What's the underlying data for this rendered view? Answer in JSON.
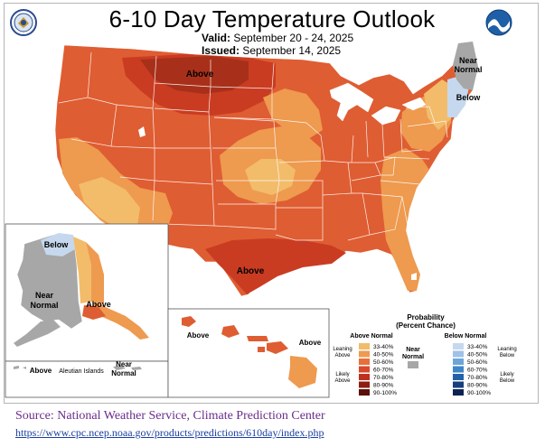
{
  "header": {
    "title": "6-10 Day Temperature Outlook",
    "valid_label": "Valid:",
    "valid_value": "September 20 - 24, 2025",
    "issued_label": "Issued:",
    "issued_value": "September 14, 2025"
  },
  "logos": {
    "left": "department-of-commerce-seal",
    "right": "noaa-logo"
  },
  "map_labels": {
    "conus_above_north": "Above",
    "conus_above_south": "Above",
    "near_normal_ne_1": "Near",
    "near_normal_ne_2": "Normal",
    "below_ne": "Below",
    "alaska_below": "Below",
    "alaska_near_1": "Near",
    "alaska_near_2": "Normal",
    "alaska_above": "Above",
    "aleutian_above": "Above",
    "aleutian_islands": "Aleutian Islands",
    "aleutian_near_1": "Near",
    "aleutian_near_2": "Normal",
    "hawaii_above_1": "Above",
    "hawaii_above_2": "Above"
  },
  "legend": {
    "title_1": "Probability",
    "title_2": "(Percent Chance)",
    "above_header": "Above Normal",
    "below_header": "Below Normal",
    "near_1": "Near",
    "near_2": "Normal",
    "leaning_above_1": "Leaning",
    "leaning_above_2": "Above",
    "likely_above_1": "Likely",
    "likely_above_2": "Above",
    "leaning_below_1": "Leaning",
    "leaning_below_2": "Below",
    "likely_below_1": "Likely",
    "likely_below_2": "Below",
    "above_bins": [
      {
        "label": "33-40%",
        "color": "#f2bc6b"
      },
      {
        "label": "40-50%",
        "color": "#ee9a4f"
      },
      {
        "label": "50-60%",
        "color": "#e7703a"
      },
      {
        "label": "60-70%",
        "color": "#d9482b"
      },
      {
        "label": "70-80%",
        "color": "#bf2f1d"
      },
      {
        "label": "80-90%",
        "color": "#8c1f12"
      },
      {
        "label": "90-100%",
        "color": "#5a1008"
      }
    ],
    "below_bins": [
      {
        "label": "33-40%",
        "color": "#c5d8ee"
      },
      {
        "label": "40-50%",
        "color": "#9fc2e6"
      },
      {
        "label": "50-60%",
        "color": "#6ca6d8"
      },
      {
        "label": "60-70%",
        "color": "#3f86c7"
      },
      {
        "label": "70-80%",
        "color": "#2462a8"
      },
      {
        "label": "80-90%",
        "color": "#173f7e"
      },
      {
        "label": "90-100%",
        "color": "#0c2352"
      }
    ],
    "near_color": "#a7a7a7"
  },
  "footer": {
    "source": "Source: National Weather Service, Climate Prediction Center",
    "url": "https://www.cpc.ncep.noaa.gov/products/predictions/610day/index.php"
  }
}
